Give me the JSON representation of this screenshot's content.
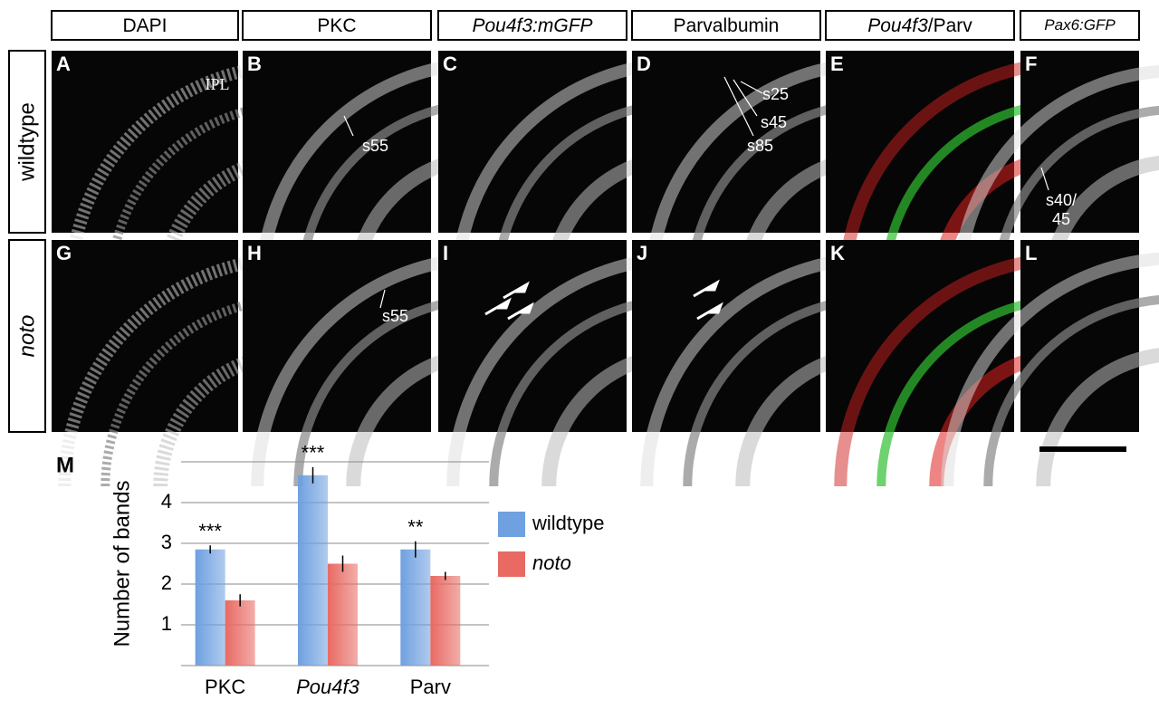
{
  "columns": [
    {
      "parts": [
        {
          "text": "DAPI",
          "italic": false
        }
      ]
    },
    {
      "parts": [
        {
          "text": "PKC",
          "italic": false
        }
      ]
    },
    {
      "parts": [
        {
          "text": "Pou4f3:mGFP",
          "italic": true
        }
      ]
    },
    {
      "parts": [
        {
          "text": "Parvalbumin",
          "italic": false
        }
      ]
    },
    {
      "parts": [
        {
          "text": "Pou4f3",
          "italic": true
        },
        {
          "text": "/Parv",
          "italic": false
        }
      ]
    },
    {
      "parts": [
        {
          "text": "Pax6:GFP",
          "italic": true
        }
      ]
    }
  ],
  "rows": [
    {
      "text": "wildtype",
      "italic": false
    },
    {
      "text": "noto",
      "italic": true
    }
  ],
  "panels": [
    {
      "letter": "A",
      "labels": [
        "IPL"
      ]
    },
    {
      "letter": "B",
      "labels": [
        "s55"
      ]
    },
    {
      "letter": "C",
      "labels": []
    },
    {
      "letter": "D",
      "labels": [
        "s25",
        "s45",
        "s85"
      ]
    },
    {
      "letter": "E",
      "labels": []
    },
    {
      "letter": "F",
      "labels": [
        "s40/",
        "45"
      ]
    },
    {
      "letter": "G",
      "labels": []
    },
    {
      "letter": "H",
      "labels": [
        "s55"
      ]
    },
    {
      "letter": "I",
      "labels": []
    },
    {
      "letter": "J",
      "labels": []
    },
    {
      "letter": "K",
      "labels": []
    },
    {
      "letter": "L",
      "labels": []
    }
  ],
  "chart_data": {
    "type": "bar",
    "panel_label": "M",
    "ylabel": "Number of bands",
    "categories": [
      "PKC",
      "Pou4f3",
      "Parv"
    ],
    "category_italic": [
      false,
      true,
      false
    ],
    "series": [
      {
        "name": "wildtype",
        "italic": false,
        "color": "#6fa0e0",
        "values": [
          2.85,
          4.67,
          2.85
        ],
        "errors": [
          0.1,
          0.2,
          0.2
        ]
      },
      {
        "name": "noto",
        "italic": true,
        "color": "#e86a63",
        "values": [
          1.6,
          2.5,
          2.2
        ],
        "errors": [
          0.15,
          0.2,
          0.1
        ]
      }
    ],
    "annotations": [
      "***",
      "***",
      "**"
    ],
    "ylim": [
      0,
      5
    ],
    "yticks": [
      1,
      2,
      3,
      4
    ],
    "grid": true
  }
}
